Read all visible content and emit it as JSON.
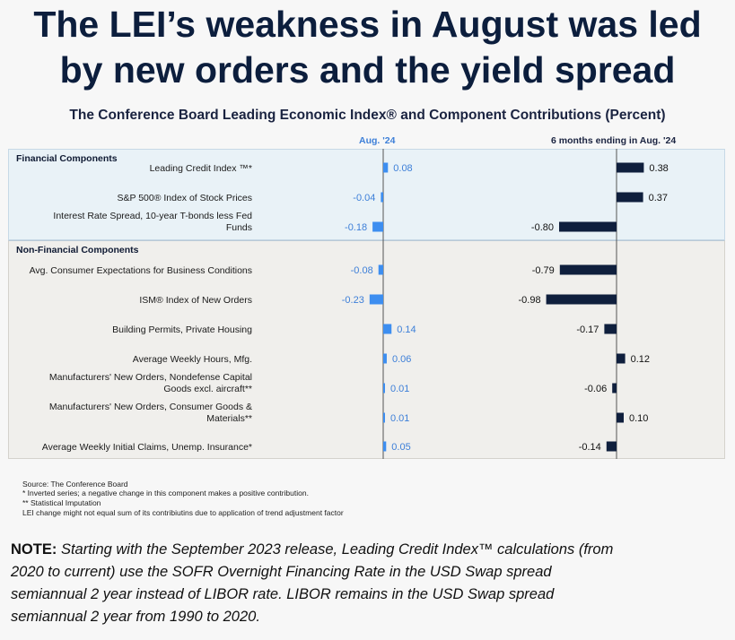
{
  "headline": {
    "line1": "The LEI’s weakness in August was led",
    "line2": "by new orders and the yield spread"
  },
  "chart_data": {
    "type": "bar",
    "orientation": "horizontal",
    "title": "The Conference Board Leading Economic Index® and Component Contributions (Percent)",
    "series": [
      {
        "name": "Aug. '24",
        "color": "#3d8ef0",
        "values": [
          0.08,
          -0.04,
          -0.18,
          -0.08,
          -0.23,
          0.14,
          0.06,
          0.01,
          0.01,
          0.05
        ]
      },
      {
        "name": "6 months ending in Aug. '24",
        "color": "#0f1f3d",
        "values": [
          0.38,
          0.37,
          -0.8,
          -0.79,
          -0.98,
          -0.17,
          0.12,
          -0.06,
          0.1,
          -0.14
        ]
      }
    ],
    "value_labels": {
      "aug": [
        "0.08",
        "-0.04",
        "-0.18",
        "-0.08",
        "-0.23",
        "0.14",
        "0.06",
        "0.01",
        "0.01",
        "0.05"
      ],
      "six_months": [
        "0.38",
        "0.37",
        "-0.80",
        "-0.79",
        "-0.98",
        "-0.17",
        "0.12",
        "-0.06",
        "0.10",
        "-0.14"
      ]
    },
    "groups": [
      {
        "name": "Financial Components",
        "categories": [
          "Leading Credit Index ™*",
          "S&P 500® Index of Stock Prices",
          "Interest Rate Spread, 10-year T-bonds less Fed Funds"
        ]
      },
      {
        "name": "Non-Financial Components",
        "categories": [
          "Avg. Consumer Expectations for Business Conditions",
          "ISM® Index of New Orders",
          "Building Permits, Private Housing",
          "Average Weekly Hours, Mfg.",
          "Manufacturers' New Orders, Nondefense Capital Goods excl. aircraft**",
          "Manufacturers' New Orders, Consumer Goods & Materials**",
          "Average Weekly Initial Claims, Unemp. Insurance*"
        ]
      }
    ],
    "category_lines": [
      [
        "Leading Credit Index ™*"
      ],
      [
        "S&P 500® Index of Stock Prices"
      ],
      [
        "Interest Rate Spread, 10-year T-bonds less Fed",
        "Funds"
      ],
      [
        "Avg. Consumer Expectations for Business Conditions"
      ],
      [
        "ISM® Index of New Orders"
      ],
      [
        "Building Permits, Private Housing"
      ],
      [
        "Average Weekly Hours, Mfg."
      ],
      [
        "Manufacturers' New Orders, Nondefense Capital",
        "Goods excl. aircraft**"
      ],
      [
        "Manufacturers' New Orders, Consumer Goods &",
        "Materials**"
      ],
      [
        "Average Weekly Initial Claims, Unemp. Insurance*"
      ]
    ]
  },
  "columns": {
    "aug": "Aug. '24",
    "six_months": "6 months ending in Aug. '24"
  },
  "footnotes": {
    "source": "Source: The Conference Board",
    "inverted": "*  Inverted series; a negative change in this component makes a positive contribution.",
    "imputation": "**  Statistical Imputation",
    "trend": "LEI change might not equal sum of its contribiutins due to application of trend adjustment factor"
  },
  "note": {
    "label": "NOTE:",
    "text": "Starting with the September 2023 release, Leading Credit Index™ calculations (from 2020 to current) use the SOFR Overnight Financing Rate in the USD Swap spread semiannual 2 year instead of LIBOR rate. LIBOR remains in the USD Swap spread semiannual 2 year from 1990 to 2020."
  }
}
